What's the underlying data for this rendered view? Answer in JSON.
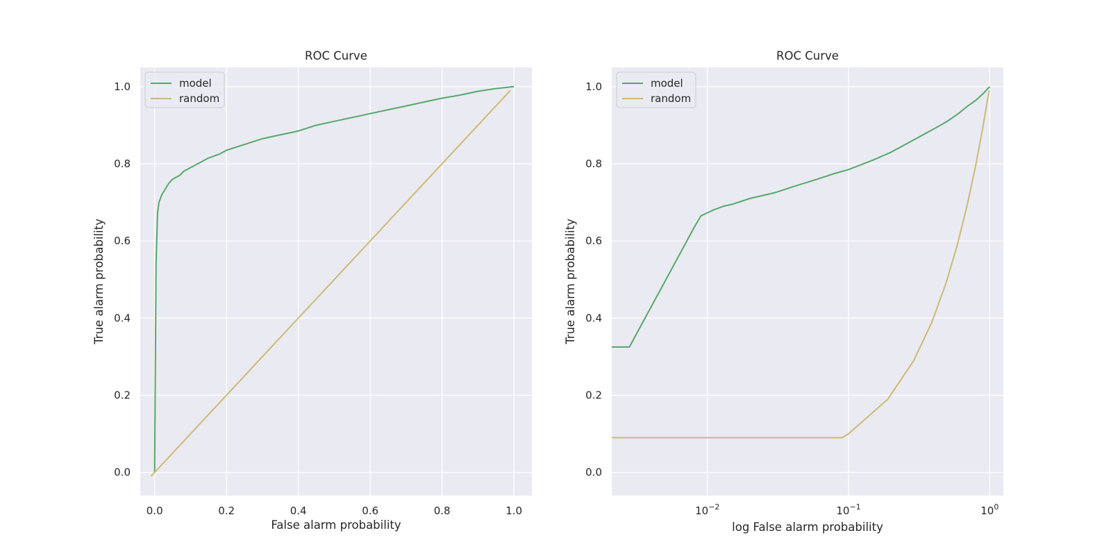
{
  "chart_data": [
    {
      "type": "line",
      "title": "ROC Curve",
      "xlabel": "False alarm probability",
      "ylabel": "True alarm probability",
      "xscale": "linear",
      "xlim": [
        -0.04,
        1.05
      ],
      "ylim": [
        -0.06,
        1.05
      ],
      "xticks": [
        0.0,
        0.2,
        0.4,
        0.6,
        0.8,
        1.0
      ],
      "xtick_labels": [
        "0.0",
        "0.2",
        "0.4",
        "0.6",
        "0.8",
        "1.0"
      ],
      "yticks": [
        0.0,
        0.2,
        0.4,
        0.6,
        0.8,
        1.0
      ],
      "ytick_labels": [
        "0.0",
        "0.2",
        "0.4",
        "0.6",
        "0.8",
        "1.0"
      ],
      "grid": true,
      "legend": "upper-left",
      "series": [
        {
          "name": "model",
          "color": "#55a868",
          "x": [
            0.0,
            0.004,
            0.008,
            0.012,
            0.02,
            0.03,
            0.04,
            0.05,
            0.06,
            0.07,
            0.08,
            0.1,
            0.12,
            0.15,
            0.18,
            0.2,
            0.25,
            0.3,
            0.35,
            0.4,
            0.45,
            0.5,
            0.55,
            0.6,
            0.65,
            0.7,
            0.75,
            0.8,
            0.85,
            0.9,
            0.95,
            1.0
          ],
          "y": [
            0.0,
            0.54,
            0.67,
            0.7,
            0.72,
            0.735,
            0.75,
            0.76,
            0.765,
            0.77,
            0.78,
            0.79,
            0.8,
            0.815,
            0.825,
            0.835,
            0.85,
            0.865,
            0.875,
            0.885,
            0.9,
            0.91,
            0.92,
            0.93,
            0.94,
            0.95,
            0.96,
            0.97,
            0.978,
            0.988,
            0.995,
            1.0
          ]
        },
        {
          "name": "random",
          "color": "#ccb974",
          "x": [
            -0.01,
            0.99
          ],
          "y": [
            -0.01,
            0.99
          ]
        }
      ]
    },
    {
      "type": "line",
      "title": "ROC Curve",
      "xlabel": "log False alarm probability",
      "ylabel": "True alarm probability",
      "xscale": "log",
      "xlim": [
        0.0021,
        1.25
      ],
      "ylim": [
        -0.06,
        1.05
      ],
      "xticks": [
        0.01,
        0.1,
        1
      ],
      "xtick_labels": [
        {
          "base": "10",
          "exp": "−2"
        },
        {
          "base": "10",
          "exp": "−1"
        },
        {
          "base": "10",
          "exp": "0"
        }
      ],
      "yticks": [
        0.0,
        0.2,
        0.4,
        0.6,
        0.8,
        1.0
      ],
      "ytick_labels": [
        "0.0",
        "0.2",
        "0.4",
        "0.6",
        "0.8",
        "1.0"
      ],
      "grid": true,
      "legend": "upper-left",
      "series": [
        {
          "name": "model",
          "color": "#55a868",
          "x": [
            0.0021,
            0.0025,
            0.0028,
            0.0082,
            0.009,
            0.011,
            0.013,
            0.015,
            0.02,
            0.03,
            0.04,
            0.06,
            0.08,
            0.1,
            0.15,
            0.2,
            0.3,
            0.4,
            0.5,
            0.6,
            0.7,
            0.8,
            0.9,
            1.0
          ],
          "y": [
            0.325,
            0.325,
            0.325,
            0.64,
            0.665,
            0.68,
            0.69,
            0.695,
            0.71,
            0.725,
            0.74,
            0.76,
            0.775,
            0.785,
            0.81,
            0.83,
            0.865,
            0.89,
            0.91,
            0.93,
            0.95,
            0.965,
            0.982,
            1.0
          ]
        },
        {
          "name": "random",
          "color": "#ccb974",
          "x": [
            0.0021,
            0.09,
            0.1,
            0.19,
            0.29,
            0.39,
            0.49,
            0.59,
            0.69,
            0.79,
            0.89,
            0.99
          ],
          "y": [
            0.09,
            0.09,
            0.1,
            0.19,
            0.29,
            0.39,
            0.49,
            0.59,
            0.69,
            0.79,
            0.89,
            0.99
          ]
        }
      ]
    }
  ]
}
